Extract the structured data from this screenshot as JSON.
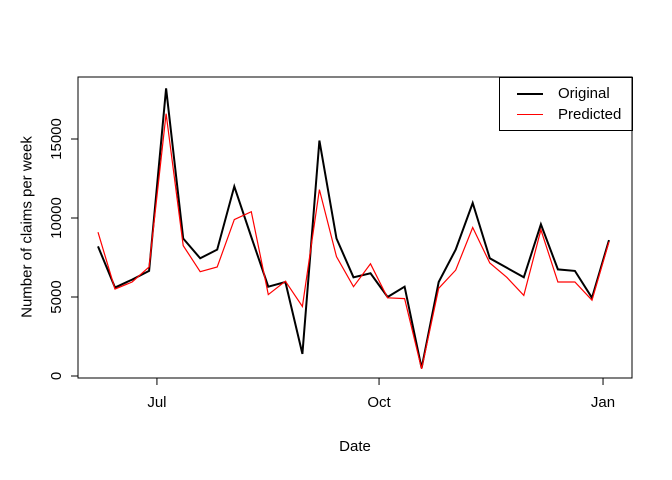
{
  "chart_data": {
    "type": "line",
    "title": "",
    "xlabel": "Date",
    "ylabel": "Number of claims per week",
    "x_unit": "weekly points, mid-June through early January",
    "x_ticks": [
      {
        "label": "Jul",
        "index": 3.46
      },
      {
        "label": "Oct",
        "index": 16.5
      },
      {
        "label": "Jan",
        "index": 29.65
      }
    ],
    "y_ticks": [
      0,
      5000,
      10000,
      15000
    ],
    "ylim": [
      0,
      18900
    ],
    "grid": "off",
    "legend_position": "topright",
    "series": [
      {
        "name": "Original",
        "color": "#000000",
        "line_width": 2,
        "values": [
          8200,
          5600,
          6100,
          6650,
          18200,
          8700,
          7450,
          8000,
          12000,
          8800,
          5650,
          5950,
          1400,
          14900,
          8700,
          6250,
          6500,
          5000,
          5650,
          500,
          5950,
          8000,
          10950,
          7450,
          6850,
          6250,
          9600,
          6750,
          6650,
          4950,
          8600
        ]
      },
      {
        "name": "Predicted",
        "color": "#ff0000",
        "line_width": 1.2,
        "values": [
          9100,
          5500,
          5950,
          6900,
          16600,
          8250,
          6600,
          6900,
          9900,
          10400,
          5150,
          6000,
          4400,
          11800,
          7550,
          5650,
          7100,
          4950,
          4900,
          450,
          5550,
          6700,
          9400,
          7150,
          6250,
          5100,
          9250,
          5950,
          5950,
          4800,
          8500
        ]
      }
    ]
  }
}
